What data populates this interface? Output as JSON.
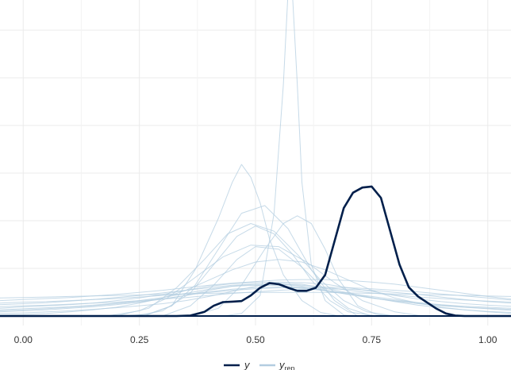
{
  "chart_data": {
    "type": "line",
    "title": "",
    "xlabel": "",
    "ylabel": "",
    "xlim": [
      -0.05,
      1.05
    ],
    "ylim": [
      0,
      6.15
    ],
    "x_ticks": [
      0.0,
      0.25,
      0.5,
      0.75,
      1.0
    ],
    "x_tick_labels": [
      "0.00",
      "0.25",
      "0.50",
      "0.75",
      "1.00"
    ],
    "grid": true,
    "legend": {
      "placement": "bottom",
      "entries": [
        {
          "key": "y",
          "label": "y"
        },
        {
          "key": "yrep",
          "label": "y",
          "subscript": "rep"
        }
      ]
    },
    "colors": {
      "y": "#011f4b",
      "yrep": "#b3cde0"
    },
    "series": [
      {
        "name": "y",
        "role": "observed",
        "x": [
          -0.05,
          0.33,
          0.36,
          0.39,
          0.41,
          0.43,
          0.45,
          0.47,
          0.49,
          0.51,
          0.53,
          0.55,
          0.57,
          0.59,
          0.61,
          0.63,
          0.65,
          0.67,
          0.69,
          0.71,
          0.73,
          0.75,
          0.77,
          0.79,
          0.81,
          0.83,
          0.85,
          0.87,
          0.89,
          0.91,
          0.93,
          0.95,
          1.05
        ],
        "y": [
          0,
          0,
          0.01,
          0.08,
          0.2,
          0.27,
          0.28,
          0.29,
          0.4,
          0.55,
          0.64,
          0.62,
          0.55,
          0.49,
          0.49,
          0.55,
          0.8,
          1.45,
          2.1,
          2.4,
          2.5,
          2.52,
          2.3,
          1.65,
          1.0,
          0.56,
          0.38,
          0.26,
          0.14,
          0.05,
          0.01,
          0,
          0
        ]
      },
      {
        "role": "replicated",
        "x": [
          -0.05,
          0.0,
          0.05,
          0.1,
          0.15,
          0.2,
          0.25,
          0.3,
          0.35,
          0.4,
          0.45,
          0.5,
          0.55,
          0.6,
          0.65,
          0.7,
          0.75,
          0.8,
          0.85,
          0.9,
          0.95,
          1.0,
          1.05
        ],
        "y": [
          0.02,
          0.03,
          0.05,
          0.08,
          0.12,
          0.17,
          0.25,
          0.35,
          0.5,
          0.7,
          0.9,
          1.05,
          1.1,
          1.05,
          0.9,
          0.7,
          0.5,
          0.35,
          0.25,
          0.17,
          0.12,
          0.08,
          0.05
        ]
      },
      {
        "role": "replicated",
        "x": [
          -0.05,
          0.0,
          0.05,
          0.1,
          0.15,
          0.2,
          0.25,
          0.3,
          0.35,
          0.4,
          0.45,
          0.5,
          0.55,
          0.6,
          0.65,
          0.7,
          0.75,
          0.8,
          0.85,
          0.9,
          0.95,
          1.0,
          1.05
        ],
        "y": [
          0.1,
          0.12,
          0.14,
          0.17,
          0.2,
          0.24,
          0.28,
          0.33,
          0.4,
          0.5,
          0.58,
          0.62,
          0.62,
          0.58,
          0.5,
          0.42,
          0.35,
          0.3,
          0.26,
          0.22,
          0.19,
          0.17,
          0.15
        ]
      },
      {
        "role": "replicated",
        "x": [
          -0.05,
          0.0,
          0.05,
          0.1,
          0.15,
          0.2,
          0.25,
          0.3,
          0.35,
          0.4,
          0.45,
          0.5,
          0.55,
          0.6,
          0.65,
          0.7,
          0.75,
          0.8,
          0.85,
          0.9,
          0.95,
          1.0,
          1.05
        ],
        "y": [
          0.15,
          0.18,
          0.2,
          0.22,
          0.25,
          0.3,
          0.35,
          0.42,
          0.5,
          0.58,
          0.63,
          0.65,
          0.66,
          0.65,
          0.62,
          0.55,
          0.48,
          0.4,
          0.33,
          0.28,
          0.24,
          0.21,
          0.19
        ]
      },
      {
        "role": "replicated",
        "x": [
          -0.05,
          0.0,
          0.05,
          0.1,
          0.15,
          0.2,
          0.25,
          0.3,
          0.35,
          0.4,
          0.45,
          0.5,
          0.55,
          0.6,
          0.65,
          0.7,
          0.75,
          0.8,
          0.85,
          0.9,
          0.95,
          1.0,
          1.05
        ],
        "y": [
          0.22,
          0.24,
          0.26,
          0.29,
          0.32,
          0.36,
          0.4,
          0.45,
          0.5,
          0.55,
          0.6,
          0.62,
          0.62,
          0.6,
          0.56,
          0.5,
          0.45,
          0.41,
          0.37,
          0.34,
          0.31,
          0.29,
          0.27
        ]
      },
      {
        "role": "replicated",
        "x": [
          -0.05,
          0.0,
          0.05,
          0.1,
          0.15,
          0.2,
          0.25,
          0.3,
          0.35,
          0.4,
          0.45,
          0.5,
          0.55,
          0.6,
          0.65,
          0.7,
          0.75,
          0.8,
          0.85,
          0.9,
          0.95,
          1.0,
          1.05
        ],
        "y": [
          0.3,
          0.32,
          0.34,
          0.36,
          0.39,
          0.42,
          0.46,
          0.5,
          0.55,
          0.6,
          0.64,
          0.67,
          0.7,
          0.71,
          0.71,
          0.69,
          0.66,
          0.62,
          0.56,
          0.5,
          0.44,
          0.38,
          0.33
        ]
      },
      {
        "role": "replicated",
        "x": [
          -0.05,
          0.0,
          0.05,
          0.1,
          0.15,
          0.2,
          0.25,
          0.3,
          0.35,
          0.4,
          0.45,
          0.5,
          0.55,
          0.6,
          0.65,
          0.7,
          0.75,
          0.8,
          0.85,
          0.9,
          0.95,
          1.0,
          1.05
        ],
        "y": [
          0.08,
          0.1,
          0.12,
          0.15,
          0.18,
          0.22,
          0.27,
          0.33,
          0.4,
          0.47,
          0.52,
          0.55,
          0.56,
          0.54,
          0.5,
          0.44,
          0.38,
          0.32,
          0.26,
          0.21,
          0.17,
          0.14,
          0.11
        ]
      },
      {
        "role": "replicated",
        "x": [
          -0.05,
          0.0,
          0.05,
          0.1,
          0.15,
          0.2,
          0.25,
          0.3,
          0.35,
          0.4,
          0.45,
          0.5,
          0.55,
          0.6,
          0.65,
          0.7,
          0.75,
          0.8,
          0.85,
          0.9,
          0.95,
          1.0,
          1.05
        ],
        "y": [
          0.05,
          0.06,
          0.08,
          0.1,
          0.13,
          0.16,
          0.2,
          0.24,
          0.3,
          0.38,
          0.48,
          0.58,
          0.64,
          0.62,
          0.54,
          0.45,
          0.36,
          0.28,
          0.21,
          0.16,
          0.12,
          0.09,
          0.07
        ]
      },
      {
        "role": "replicated",
        "x": [
          -0.05,
          0.0,
          0.05,
          0.1,
          0.15,
          0.2,
          0.25,
          0.3,
          0.35,
          0.4,
          0.45,
          0.5,
          0.55,
          0.6,
          0.65,
          0.7,
          0.75,
          0.8,
          0.85,
          0.9,
          0.95,
          1.0,
          1.05
        ],
        "y": [
          0.18,
          0.2,
          0.21,
          0.23,
          0.25,
          0.27,
          0.3,
          0.33,
          0.36,
          0.4,
          0.44,
          0.47,
          0.5,
          0.52,
          0.53,
          0.52,
          0.5,
          0.46,
          0.42,
          0.37,
          0.32,
          0.28,
          0.25
        ]
      },
      {
        "role": "replicated",
        "x": [
          -0.05,
          0.0,
          0.05,
          0.1,
          0.15,
          0.2,
          0.25,
          0.3,
          0.35,
          0.4,
          0.45,
          0.5,
          0.55,
          0.6,
          0.65,
          0.7,
          0.75,
          0.8,
          0.85,
          0.9,
          0.95,
          1.0,
          1.05
        ],
        "y": [
          0.25,
          0.27,
          0.28,
          0.3,
          0.32,
          0.34,
          0.37,
          0.4,
          0.43,
          0.46,
          0.5,
          0.53,
          0.55,
          0.56,
          0.56,
          0.55,
          0.53,
          0.5,
          0.47,
          0.43,
          0.39,
          0.35,
          0.31
        ]
      },
      {
        "role": "replicated",
        "x": [
          -0.05,
          0.0,
          0.05,
          0.1,
          0.15,
          0.2,
          0.25,
          0.3,
          0.35,
          0.4,
          0.45,
          0.5,
          0.55,
          0.6,
          0.65,
          0.7,
          0.75,
          0.8,
          0.85,
          0.9,
          0.95,
          1.0,
          1.05
        ],
        "y": [
          0.12,
          0.14,
          0.16,
          0.18,
          0.21,
          0.25,
          0.3,
          0.36,
          0.44,
          0.52,
          0.58,
          0.6,
          0.59,
          0.55,
          0.49,
          0.42,
          0.35,
          0.29,
          0.24,
          0.2,
          0.17,
          0.15,
          0.13
        ]
      },
      {
        "role": "replicated",
        "x": [
          -0.05,
          0.0,
          0.05,
          0.1,
          0.15,
          0.2,
          0.25,
          0.3,
          0.35,
          0.4,
          0.45,
          0.5,
          0.55,
          0.6,
          0.65,
          0.7,
          0.75,
          0.8,
          0.85,
          0.9,
          0.95,
          1.0,
          1.05
        ],
        "y": [
          0.35,
          0.36,
          0.37,
          0.38,
          0.39,
          0.4,
          0.41,
          0.42,
          0.43,
          0.44,
          0.45,
          0.46,
          0.46,
          0.46,
          0.46,
          0.45,
          0.44,
          0.43,
          0.42,
          0.41,
          0.4,
          0.39,
          0.38
        ]
      },
      {
        "role": "replicated",
        "x": [
          0.22,
          0.27,
          0.32,
          0.37,
          0.42,
          0.47,
          0.52,
          0.57,
          0.62,
          0.67,
          0.72
        ],
        "y": [
          0,
          0.04,
          0.2,
          0.6,
          1.3,
          2.0,
          2.15,
          1.7,
          0.9,
          0.3,
          0
        ]
      },
      {
        "role": "replicated",
        "x": [
          0.26,
          0.32,
          0.37,
          0.42,
          0.45,
          0.47,
          0.49,
          0.51,
          0.53,
          0.56,
          0.6,
          0.64,
          0.68
        ],
        "y": [
          0,
          0.2,
          0.9,
          1.9,
          2.6,
          2.95,
          2.7,
          2.2,
          1.5,
          0.8,
          0.3,
          0.07,
          0
        ]
      },
      {
        "role": "replicated",
        "x": [
          0.43,
          0.47,
          0.51,
          0.54,
          0.56,
          0.57,
          0.58,
          0.59,
          0.6,
          0.62,
          0.65,
          0.69,
          0.72
        ],
        "y": [
          0,
          0.05,
          0.4,
          2.0,
          4.5,
          6.3,
          6.2,
          4.5,
          2.6,
          1.0,
          0.3,
          0.02,
          0
        ]
      },
      {
        "role": "replicated",
        "x": [
          0.36,
          0.42,
          0.47,
          0.52,
          0.56,
          0.59,
          0.62,
          0.65,
          0.68,
          0.72,
          0.76,
          0.8
        ],
        "y": [
          0,
          0.15,
          0.6,
          1.3,
          1.8,
          1.95,
          1.8,
          1.3,
          0.7,
          0.2,
          0.03,
          0
        ]
      },
      {
        "role": "replicated",
        "x": [
          0.2,
          0.27,
          0.33,
          0.39,
          0.44,
          0.49,
          0.54,
          0.59,
          0.64,
          0.69,
          0.74,
          0.8
        ],
        "y": [
          0,
          0.15,
          0.55,
          1.1,
          1.6,
          1.8,
          1.65,
          1.2,
          0.7,
          0.3,
          0.08,
          0
        ]
      },
      {
        "role": "replicated",
        "x": [
          0.24,
          0.3,
          0.36,
          0.41,
          0.46,
          0.5,
          0.54,
          0.58,
          0.62,
          0.66,
          0.7,
          0.76
        ],
        "y": [
          0,
          0.1,
          0.45,
          1.0,
          1.55,
          1.75,
          1.6,
          1.2,
          0.7,
          0.3,
          0.08,
          0
        ]
      },
      {
        "role": "replicated",
        "x": [
          0.3,
          0.36,
          0.41,
          0.46,
          0.5,
          0.55,
          0.6,
          0.65,
          0.7,
          0.75
        ],
        "y": [
          0,
          0.2,
          0.6,
          1.1,
          1.35,
          1.3,
          0.95,
          0.5,
          0.15,
          0
        ]
      },
      {
        "role": "replicated",
        "x": [
          0.18,
          0.25,
          0.31,
          0.37,
          0.43,
          0.49,
          0.55,
          0.61,
          0.67,
          0.73,
          0.8,
          0.86
        ],
        "y": [
          0,
          0.1,
          0.35,
          0.75,
          1.15,
          1.38,
          1.35,
          1.05,
          0.65,
          0.3,
          0.08,
          0
        ]
      }
    ]
  }
}
